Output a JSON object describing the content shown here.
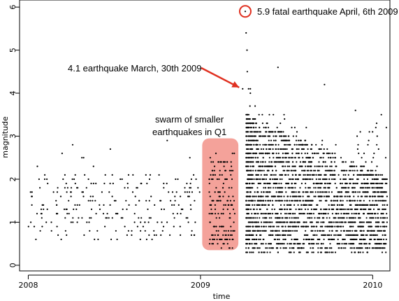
{
  "chart_data": {
    "type": "scatter",
    "xlabel": "time",
    "ylabel": "magnitude",
    "xlim": [
      2007.99,
      2010.1
    ],
    "ylim": [
      -0.05,
      6.1
    ],
    "x_ticks": [
      {
        "value": 2008,
        "label": "2008"
      },
      {
        "value": 2009,
        "label": "2009"
      },
      {
        "value": 2010,
        "label": "2010"
      }
    ],
    "y_ticks": [
      0,
      1,
      2,
      3,
      4,
      5,
      6
    ],
    "colors": {
      "points": "#000000",
      "arrow": "#e03020",
      "circle": "#e03020",
      "swarm_fill": "#f4a29a"
    },
    "annotations": {
      "main_shock_label": "5.9 fatal earthquake April, 6th 2009",
      "foreshock_label": "4.1 earthquake March, 30th 2009",
      "swarm_label_line1": "swarm of smaller",
      "swarm_label_line2": "earthquakes in Q1"
    },
    "highlights": {
      "main_shock": {
        "x": 2009.26,
        "y": 5.9
      },
      "foreshock": {
        "x": 2009.245,
        "y": 4.1
      },
      "swarm_region": {
        "x": [
          2009.01,
          2009.22
        ],
        "y": [
          0.35,
          2.95
        ]
      }
    }
  }
}
